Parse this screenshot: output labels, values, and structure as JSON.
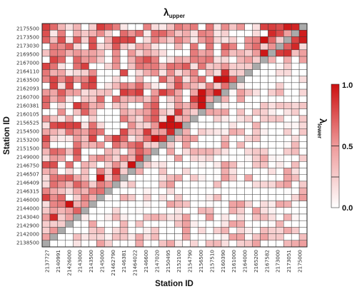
{
  "chart_data": {
    "type": "heatmap",
    "title_symbol": "λ",
    "title_subscript": "upper",
    "xlabel": "Station ID",
    "ylabel": "Station ID",
    "colorbar": {
      "label_symbol": "λ",
      "label_subscript": "lower",
      "ticks": [
        "1.0",
        "0.5",
        "0.0"
      ],
      "range": [
        0,
        1
      ],
      "colors": {
        "low": "#ffffff",
        "mid": "#ee9a9a",
        "high": "#cc1111"
      }
    },
    "diagonal_color": "#aaaaaa",
    "grid": true,
    "matrix_size": 34,
    "x_tick_labels": [
      "2137727",
      "2140991",
      "21426000",
      "2143000",
      "2143500",
      "2145000",
      "21462790",
      "2146381",
      "21464022",
      "2146600",
      "2147020",
      "2150495",
      "2152100",
      "2154790",
      "2156500",
      "2157510",
      "2160390",
      "2161000",
      "2164000",
      "2165200",
      "2167582",
      "2173000",
      "2173051",
      "2175000"
    ],
    "y_tick_labels": [
      "2175500",
      "2173500",
      "2173030",
      "2169500",
      "2167000",
      "2164110",
      "2163500",
      "2162093",
      "2160700",
      "2160381",
      "2160105",
      "2156525",
      "2154500",
      "2153200",
      "2151500",
      "2149000",
      "2146750",
      "2146507",
      "2146409",
      "2146315",
      "2146000",
      "2144000",
      "2143040",
      "2142900",
      "2142000",
      "2138500"
    ]
  }
}
